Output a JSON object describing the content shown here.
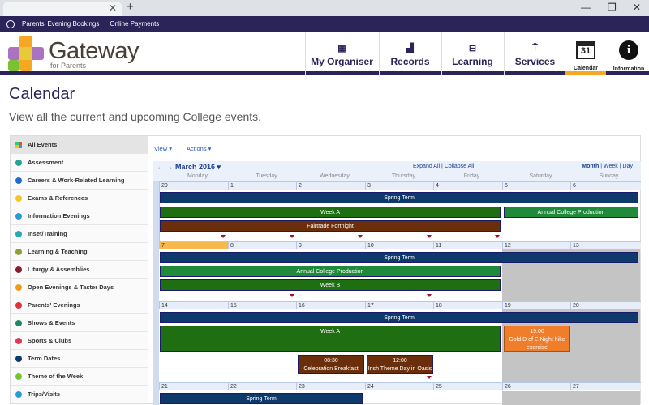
{
  "browser": {
    "new_tab": "+",
    "minimize": "—",
    "restore": "❐",
    "close": "✕",
    "tab_close": "✕"
  },
  "topbar": {
    "links": [
      "Parents' Evening Bookings",
      "Online Payments"
    ]
  },
  "header": {
    "brand": "Gateway",
    "brand_sub": "for Parents",
    "nav": [
      {
        "label": "My Organiser",
        "icon": "grid-icon"
      },
      {
        "label": "Records",
        "icon": "chart-icon"
      },
      {
        "label": "Learning",
        "icon": "book-icon"
      },
      {
        "label": "Services",
        "icon": "signpost-icon"
      }
    ],
    "calendar_label": "Calendar",
    "calendar_day": "31",
    "info_label": "Information",
    "info_glyph": "i"
  },
  "page": {
    "title": "Calendar",
    "subtitle": "View all the current and upcoming College events."
  },
  "categories": [
    {
      "label": "All Events",
      "color": ""
    },
    {
      "label": "Assessment",
      "color": "#2aa198"
    },
    {
      "label": "Careers & Work-Related Learning",
      "color": "#1f6fc5"
    },
    {
      "label": "Exams & References",
      "color": "#f4c430"
    },
    {
      "label": "Information Evenings",
      "color": "#2a9bd5"
    },
    {
      "label": "Inset/Training",
      "color": "#2aa8b8"
    },
    {
      "label": "Learning & Teaching",
      "color": "#8ca03a"
    },
    {
      "label": "Liturgy & Assemblies",
      "color": "#8b1a2b"
    },
    {
      "label": "Open Evenings & Taster Days",
      "color": "#f39c12"
    },
    {
      "label": "Parents' Evenings",
      "color": "#e0303a"
    },
    {
      "label": "Shows & Events",
      "color": "#1a8a6a"
    },
    {
      "label": "Sports & Clubs",
      "color": "#e03a5a"
    },
    {
      "label": "Term Dates",
      "color": "#0e3a6b"
    },
    {
      "label": "Theme of the Week",
      "color": "#7ac232"
    },
    {
      "label": "Trips/Visits",
      "color": "#2a9bd5"
    }
  ],
  "toolbar": {
    "view": "View ▾",
    "actions": "Actions ▾"
  },
  "calendar": {
    "prev": "←",
    "next": "→",
    "month": "March 2016 ▾",
    "expand_all": "Expand All",
    "collapse_all": "Collapse All",
    "separator": "|",
    "views": [
      "Month",
      "Week",
      "Day"
    ],
    "day_names": [
      "Monday",
      "Tuesday",
      "Wednesday",
      "Thursday",
      "Friday",
      "Saturday",
      "Sunday"
    ],
    "weeks": [
      [
        "29",
        "1",
        "2",
        "3",
        "4",
        "5",
        "6"
      ],
      [
        "7",
        "8",
        "9",
        "10",
        "11",
        "12",
        "13"
      ],
      [
        "14",
        "15",
        "16",
        "17",
        "18",
        "19",
        "20"
      ],
      [
        "21",
        "22",
        "23",
        "24",
        "25",
        "26",
        "27"
      ]
    ],
    "events": {
      "w1_spring": "Spring Term",
      "w1_week": "Week A",
      "w1_production": "Annual College Production",
      "w1_fairtrade": "Fairtrade Fortnight",
      "w2_spring": "Spring Term",
      "w2_production": "Annual College Production",
      "w2_week": "Week B",
      "w3_spring": "Spring Term",
      "w3_week": "Week A",
      "w3_gold_time": "19:00",
      "w3_gold": "Gold D of E Night hike exercise",
      "w3_breakfast_time": "08:30",
      "w3_breakfast": "Celebration Breakfast",
      "w3_irish_time": "12:00",
      "w3_irish": "Irish Theme Day in Oasis",
      "w4_spring": "Spring Term"
    }
  },
  "colors": {
    "brand": "#2b2459",
    "accent": "#f7a823",
    "term": "#0e3a6b",
    "week": "#1f6e12"
  }
}
